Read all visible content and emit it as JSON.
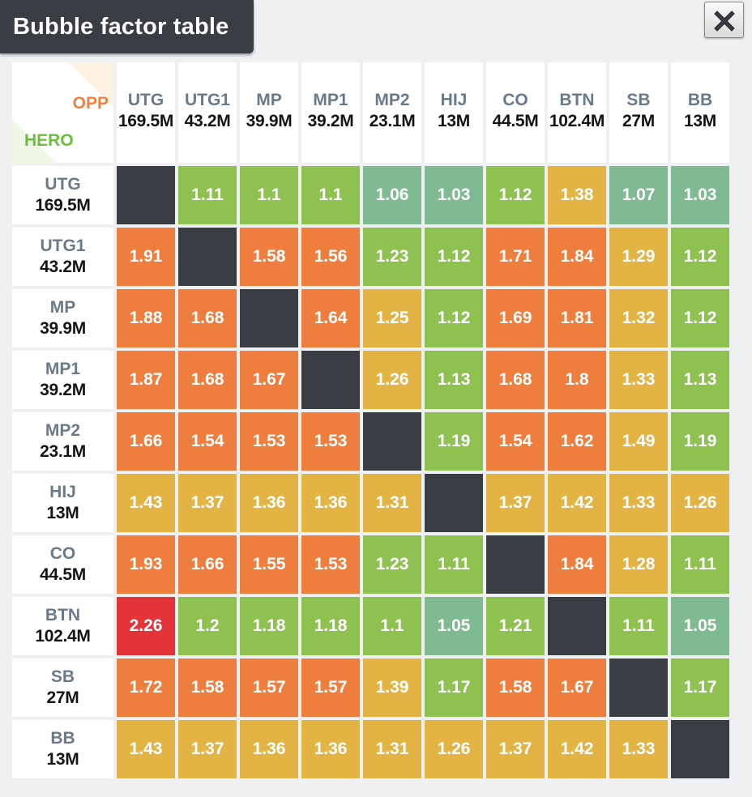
{
  "title": "Bubble factor table",
  "corner": {
    "opp_label": "OPP",
    "hero_label": "HERO"
  },
  "players": [
    {
      "pos": "UTG",
      "stack": "169.5M"
    },
    {
      "pos": "UTG1",
      "stack": "43.2M"
    },
    {
      "pos": "MP",
      "stack": "39.9M"
    },
    {
      "pos": "MP1",
      "stack": "39.2M"
    },
    {
      "pos": "MP2",
      "stack": "23.1M"
    },
    {
      "pos": "HIJ",
      "stack": "13M"
    },
    {
      "pos": "CO",
      "stack": "44.5M"
    },
    {
      "pos": "BTN",
      "stack": "102.4M"
    },
    {
      "pos": "SB",
      "stack": "27M"
    },
    {
      "pos": "BB",
      "stack": "13M"
    }
  ],
  "matrix": [
    [
      null,
      "1.11",
      "1.1",
      "1.1",
      "1.06",
      "1.03",
      "1.12",
      "1.38",
      "1.07",
      "1.03"
    ],
    [
      "1.91",
      null,
      "1.58",
      "1.56",
      "1.23",
      "1.12",
      "1.71",
      "1.84",
      "1.29",
      "1.12"
    ],
    [
      "1.88",
      "1.68",
      null,
      "1.64",
      "1.25",
      "1.12",
      "1.69",
      "1.81",
      "1.32",
      "1.12"
    ],
    [
      "1.87",
      "1.68",
      "1.67",
      null,
      "1.26",
      "1.13",
      "1.68",
      "1.8",
      "1.33",
      "1.13"
    ],
    [
      "1.66",
      "1.54",
      "1.53",
      "1.53",
      null,
      "1.19",
      "1.54",
      "1.62",
      "1.49",
      "1.19"
    ],
    [
      "1.43",
      "1.37",
      "1.36",
      "1.36",
      "1.31",
      null,
      "1.37",
      "1.42",
      "1.33",
      "1.26"
    ],
    [
      "1.93",
      "1.66",
      "1.55",
      "1.53",
      "1.23",
      "1.11",
      null,
      "1.84",
      "1.28",
      "1.11"
    ],
    [
      "2.26",
      "1.2",
      "1.18",
      "1.18",
      "1.1",
      "1.05",
      "1.21",
      null,
      "1.11",
      "1.05"
    ],
    [
      "1.72",
      "1.58",
      "1.57",
      "1.57",
      "1.39",
      "1.17",
      "1.58",
      "1.67",
      null,
      "1.17"
    ],
    [
      "1.43",
      "1.37",
      "1.36",
      "1.36",
      "1.31",
      "1.26",
      "1.37",
      "1.42",
      "1.33",
      null
    ]
  ],
  "cell_colors": {
    "teal": "#7fba92",
    "green": "#8fc150",
    "yellow": "#e3b444",
    "orange": "#ee7d3e",
    "red": "#e3343a",
    "diagonal": "#3a3d44"
  },
  "icons": {
    "close": "close-icon"
  }
}
